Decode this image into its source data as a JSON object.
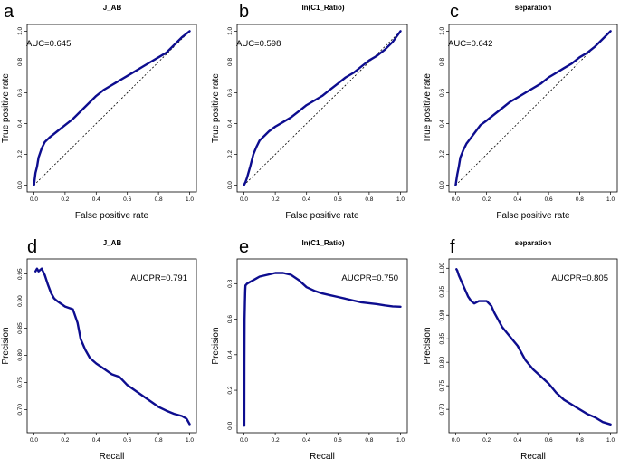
{
  "colors": {
    "curve": "#0d0d8f",
    "axis": "#000000"
  },
  "chart_data": [
    {
      "id": "a",
      "panel_label": "a",
      "type": "line",
      "title": "J_AB",
      "xlabel": "False positive rate",
      "ylabel": "True positive rate",
      "xlim": [
        0,
        1
      ],
      "ylim": [
        0,
        1
      ],
      "xticks": [
        "0.0",
        "0.2",
        "0.4",
        "0.6",
        "0.8",
        "1.0"
      ],
      "yticks": [
        "0.0",
        "0.2",
        "0.4",
        "0.6",
        "0.8",
        "1.0"
      ],
      "diagonal": true,
      "annotation": "AUC=0.645",
      "annotation_position": "top-left",
      "series": [
        {
          "name": "ROC",
          "x": [
            0,
            0.01,
            0.02,
            0.03,
            0.05,
            0.07,
            0.1,
            0.15,
            0.2,
            0.25,
            0.3,
            0.35,
            0.4,
            0.45,
            0.5,
            0.55,
            0.6,
            0.65,
            0.7,
            0.75,
            0.8,
            0.85,
            0.9,
            0.95,
            1.0
          ],
          "y": [
            0,
            0.08,
            0.12,
            0.18,
            0.24,
            0.28,
            0.31,
            0.35,
            0.39,
            0.43,
            0.48,
            0.53,
            0.58,
            0.62,
            0.65,
            0.68,
            0.71,
            0.74,
            0.77,
            0.8,
            0.83,
            0.86,
            0.91,
            0.96,
            1.0
          ]
        }
      ]
    },
    {
      "id": "b",
      "panel_label": "b",
      "type": "line",
      "title": "ln(C1_Ratio)",
      "xlabel": "False positive rate",
      "ylabel": "True positive rate",
      "xlim": [
        0,
        1
      ],
      "ylim": [
        0,
        1
      ],
      "xticks": [
        "0.0",
        "0.2",
        "0.4",
        "0.6",
        "0.8",
        "1.0"
      ],
      "yticks": [
        "0.0",
        "0.2",
        "0.4",
        "0.6",
        "0.8",
        "1.0"
      ],
      "diagonal": true,
      "annotation": "AUC=0.598",
      "annotation_position": "top-left",
      "series": [
        {
          "name": "ROC",
          "x": [
            0,
            0.01,
            0.02,
            0.04,
            0.06,
            0.08,
            0.1,
            0.13,
            0.16,
            0.2,
            0.25,
            0.3,
            0.35,
            0.4,
            0.45,
            0.5,
            0.55,
            0.6,
            0.65,
            0.7,
            0.75,
            0.8,
            0.85,
            0.9,
            0.95,
            1.0
          ],
          "y": [
            0,
            0.02,
            0.05,
            0.12,
            0.2,
            0.25,
            0.29,
            0.32,
            0.35,
            0.38,
            0.41,
            0.44,
            0.48,
            0.52,
            0.55,
            0.58,
            0.62,
            0.66,
            0.7,
            0.73,
            0.77,
            0.81,
            0.84,
            0.88,
            0.93,
            1.0
          ]
        }
      ]
    },
    {
      "id": "c",
      "panel_label": "c",
      "type": "line",
      "title": "separation",
      "xlabel": "False positive rate",
      "ylabel": "True positive rate",
      "xlim": [
        0,
        1
      ],
      "ylim": [
        0,
        1
      ],
      "xticks": [
        "0.0",
        "0.2",
        "0.4",
        "0.6",
        "0.8",
        "1.0"
      ],
      "yticks": [
        "0.0",
        "0.2",
        "0.4",
        "0.6",
        "0.8",
        "1.0"
      ],
      "diagonal": true,
      "annotation": "AUC=0.642",
      "annotation_position": "top-left",
      "series": [
        {
          "name": "ROC",
          "x": [
            0,
            0.01,
            0.02,
            0.03,
            0.05,
            0.07,
            0.1,
            0.13,
            0.16,
            0.2,
            0.25,
            0.3,
            0.35,
            0.4,
            0.45,
            0.5,
            0.55,
            0.6,
            0.65,
            0.7,
            0.75,
            0.8,
            0.85,
            0.9,
            0.95,
            1.0
          ],
          "y": [
            0,
            0.07,
            0.12,
            0.18,
            0.23,
            0.27,
            0.31,
            0.35,
            0.39,
            0.42,
            0.46,
            0.5,
            0.54,
            0.57,
            0.6,
            0.63,
            0.66,
            0.7,
            0.73,
            0.76,
            0.79,
            0.83,
            0.86,
            0.9,
            0.95,
            1.0
          ]
        }
      ]
    },
    {
      "id": "d",
      "panel_label": "d",
      "type": "line",
      "title": "J_AB",
      "xlabel": "Recall",
      "ylabel": "Precision",
      "xlim": [
        0,
        1
      ],
      "ylim": [
        0.67,
        0.965
      ],
      "xticks": [
        "0.0",
        "0.2",
        "0.4",
        "0.6",
        "0.8",
        "1.0"
      ],
      "ytick_values": [
        0.7,
        0.75,
        0.8,
        0.85,
        0.9,
        0.95
      ],
      "yticks": [
        "0.70",
        "0.75",
        "0.80",
        "0.85",
        "0.90",
        "0.95"
      ],
      "diagonal": false,
      "annotation": "AUCPR=0.791",
      "annotation_position": "top-right",
      "series": [
        {
          "name": "PR",
          "x": [
            0.01,
            0.02,
            0.03,
            0.05,
            0.07,
            0.09,
            0.11,
            0.13,
            0.15,
            0.2,
            0.25,
            0.28,
            0.3,
            0.33,
            0.36,
            0.4,
            0.45,
            0.5,
            0.55,
            0.6,
            0.65,
            0.7,
            0.75,
            0.8,
            0.85,
            0.9,
            0.95,
            0.98,
            1.0
          ],
          "y": [
            0.955,
            0.96,
            0.955,
            0.96,
            0.948,
            0.93,
            0.915,
            0.905,
            0.9,
            0.89,
            0.885,
            0.86,
            0.83,
            0.81,
            0.795,
            0.785,
            0.775,
            0.765,
            0.76,
            0.745,
            0.735,
            0.725,
            0.715,
            0.705,
            0.698,
            0.692,
            0.688,
            0.683,
            0.673
          ]
        }
      ]
    },
    {
      "id": "e",
      "panel_label": "e",
      "type": "line",
      "title": "ln(C1_Ratio)",
      "xlabel": "Recall",
      "ylabel": "Precision",
      "xlim": [
        0,
        1
      ],
      "ylim": [
        0,
        0.9
      ],
      "xticks": [
        "0.0",
        "0.2",
        "0.4",
        "0.6",
        "0.8",
        "1.0"
      ],
      "ytick_values": [
        0,
        0.2,
        0.4,
        0.6,
        0.8
      ],
      "yticks": [
        "0.0",
        "0.2",
        "0.4",
        "0.6",
        "0.8"
      ],
      "diagonal": false,
      "annotation": "AUCPR=0.750",
      "annotation_position": "top-right",
      "series": [
        {
          "name": "PR",
          "x": [
            0.002,
            0.003,
            0.004,
            0.006,
            0.008,
            0.01,
            0.02,
            0.04,
            0.06,
            0.08,
            0.1,
            0.15,
            0.2,
            0.25,
            0.3,
            0.35,
            0.4,
            0.45,
            0.5,
            0.55,
            0.6,
            0.65,
            0.7,
            0.75,
            0.8,
            0.85,
            0.9,
            0.95,
            1.0
          ],
          "y": [
            0,
            0.35,
            0.6,
            0.7,
            0.76,
            0.79,
            0.8,
            0.81,
            0.82,
            0.83,
            0.84,
            0.85,
            0.86,
            0.86,
            0.85,
            0.82,
            0.78,
            0.76,
            0.745,
            0.735,
            0.725,
            0.715,
            0.705,
            0.695,
            0.69,
            0.685,
            0.678,
            0.672,
            0.67
          ]
        }
      ]
    },
    {
      "id": "f",
      "panel_label": "f",
      "type": "line",
      "title": "separation",
      "xlabel": "Recall",
      "ylabel": "Precision",
      "xlim": [
        0,
        1
      ],
      "ylim": [
        0.665,
        1.005
      ],
      "xticks": [
        "0.0",
        "0.2",
        "0.4",
        "0.6",
        "0.8",
        "1.0"
      ],
      "ytick_values": [
        0.7,
        0.75,
        0.8,
        0.85,
        0.9,
        0.95,
        1.0
      ],
      "yticks": [
        "0.70",
        "0.75",
        "0.80",
        "0.85",
        "0.90",
        "0.95",
        "1.00"
      ],
      "diagonal": false,
      "annotation": "AUCPR=0.805",
      "annotation_position": "top-right",
      "series": [
        {
          "name": "PR",
          "x": [
            0.005,
            0.01,
            0.02,
            0.04,
            0.06,
            0.08,
            0.1,
            0.12,
            0.15,
            0.18,
            0.2,
            0.23,
            0.25,
            0.3,
            0.35,
            0.4,
            0.45,
            0.5,
            0.55,
            0.6,
            0.65,
            0.7,
            0.75,
            0.8,
            0.85,
            0.9,
            0.95,
            1.0
          ],
          "y": [
            0.998,
            0.995,
            0.985,
            0.97,
            0.955,
            0.94,
            0.93,
            0.925,
            0.93,
            0.93,
            0.93,
            0.92,
            0.905,
            0.875,
            0.855,
            0.835,
            0.805,
            0.785,
            0.77,
            0.755,
            0.735,
            0.72,
            0.71,
            0.7,
            0.69,
            0.683,
            0.673,
            0.668
          ]
        }
      ]
    }
  ]
}
